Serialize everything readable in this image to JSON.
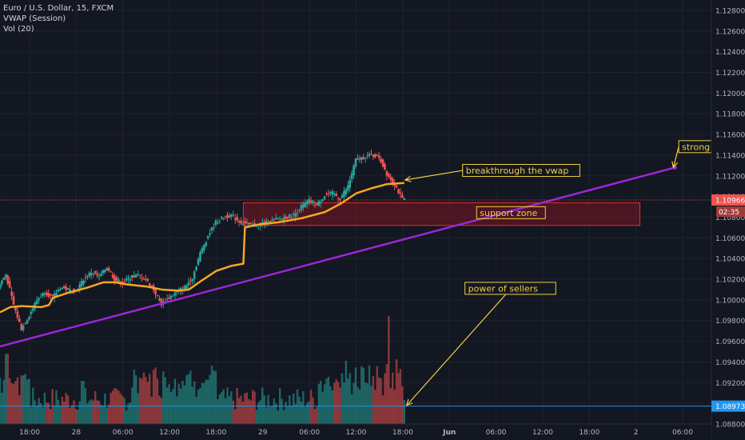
{
  "header": {
    "symbol": "Euro / U.S. Dollar, 15, FXCM",
    "indicator_vwap": "VWAP (Session)",
    "indicator_vol": "Vol (20)"
  },
  "colors": {
    "background": "#131722",
    "grid": "#1e222d",
    "axis_text": "#b2b5be",
    "up": "#26a69a",
    "down": "#ef5350",
    "vwap": "#f5a623",
    "trendline": "#9c27d6",
    "annotation_border": "#f0d040",
    "annotation_text": "#f0d040",
    "support_zone_fill": "#7a1520",
    "support_zone_border": "#e03030",
    "price_tag": "#ef5350",
    "volume_line": "#2196f3"
  },
  "chart_data": {
    "type": "candlestick",
    "ylim": [
      1.088,
      1.129
    ],
    "y_ticks": [
      "1.12800",
      "1.12600",
      "1.12400",
      "1.12200",
      "1.12000",
      "1.11800",
      "1.11600",
      "1.11400",
      "1.11200",
      "1.11000",
      "1.10800",
      "1.10600",
      "1.10400",
      "1.10200",
      "1.10000",
      "1.09800",
      "1.09600",
      "1.09400",
      "1.09200",
      "1.09000",
      "1.08800"
    ],
    "y_tick_values": [
      1.128,
      1.126,
      1.124,
      1.122,
      1.12,
      1.118,
      1.116,
      1.114,
      1.112,
      1.11,
      1.108,
      1.106,
      1.104,
      1.102,
      1.1,
      1.098,
      1.096,
      1.094,
      1.092,
      1.09,
      1.088
    ],
    "x_ticks": [
      "18:00",
      "28",
      "06:00",
      "12:00",
      "18:00",
      "29",
      "06:00",
      "12:00",
      "18:00",
      "Jun",
      "06:00",
      "12:00",
      "18:00",
      "2",
      "06:00"
    ],
    "x_tick_hours": [
      18,
      24,
      30,
      36,
      42,
      48,
      54,
      60,
      66,
      72,
      78,
      84,
      90,
      96,
      102
    ],
    "x_range_hours": [
      14.2,
      105.7
    ],
    "last_bar_hour": 66.2,
    "current_price": {
      "value": 1.10966,
      "label": "1.10966",
      "countdown": "02:35"
    },
    "volume_price_tag": {
      "value": 1.08973,
      "label": "1.08973"
    },
    "price_path": [
      [
        14.2,
        1.1012
      ],
      [
        15.2,
        1.1025
      ],
      [
        16.2,
        1.0995
      ],
      [
        17.2,
        1.0972
      ],
      [
        18.2,
        1.0985
      ],
      [
        19.2,
        1.1
      ],
      [
        20.2,
        1.1008
      ],
      [
        21.2,
        1.1002
      ],
      [
        22.2,
        1.1012
      ],
      [
        23.2,
        1.101
      ],
      [
        24.2,
        1.1008
      ],
      [
        25.2,
        1.102
      ],
      [
        26.2,
        1.1027
      ],
      [
        27.2,
        1.1022
      ],
      [
        28.2,
        1.1032
      ],
      [
        29.2,
        1.102
      ],
      [
        30.2,
        1.1016
      ],
      [
        31.2,
        1.1022
      ],
      [
        32.2,
        1.1024
      ],
      [
        33.2,
        1.102
      ],
      [
        34.2,
        1.101
      ],
      [
        35.2,
        1.0996
      ],
      [
        36.2,
        1.1002
      ],
      [
        37.2,
        1.1008
      ],
      [
        38.2,
        1.1012
      ],
      [
        39.2,
        1.1022
      ],
      [
        40.2,
        1.1045
      ],
      [
        41.2,
        1.1062
      ],
      [
        42.2,
        1.1075
      ],
      [
        43.2,
        1.108
      ],
      [
        44.2,
        1.1082
      ],
      [
        45.2,
        1.1076
      ],
      [
        46.2,
        1.1073
      ],
      [
        47.2,
        1.1072
      ],
      [
        48.2,
        1.1074
      ],
      [
        49.2,
        1.1076
      ],
      [
        50.2,
        1.1078
      ],
      [
        51.2,
        1.108
      ],
      [
        52.2,
        1.1082
      ],
      [
        53.2,
        1.109
      ],
      [
        54.2,
        1.1096
      ],
      [
        55.2,
        1.1092
      ],
      [
        56.2,
        1.1101
      ],
      [
        57.2,
        1.1103
      ],
      [
        58.2,
        1.1098
      ],
      [
        59.2,
        1.111
      ],
      [
        60.2,
        1.1135
      ],
      [
        61.2,
        1.1138
      ],
      [
        62.2,
        1.114
      ],
      [
        63.2,
        1.1138
      ],
      [
        64.2,
        1.1122
      ],
      [
        65.2,
        1.1112
      ],
      [
        66.2,
        1.1097
      ]
    ],
    "vwap": [
      [
        14.2,
        1.0988
      ],
      [
        15.5,
        1.0993
      ],
      [
        17.0,
        1.0994
      ],
      [
        19.5,
        1.0993
      ],
      [
        20.5,
        1.0995
      ],
      [
        21.0,
        1.1002
      ],
      [
        23.0,
        1.1007
      ],
      [
        25.5,
        1.1012
      ],
      [
        27.5,
        1.1017
      ],
      [
        29.0,
        1.1017
      ],
      [
        30.5,
        1.1015
      ],
      [
        33.0,
        1.1013
      ],
      [
        35.0,
        1.101
      ],
      [
        37.0,
        1.1009
      ],
      [
        38.5,
        1.101
      ],
      [
        40.0,
        1.1018
      ],
      [
        42.0,
        1.1028
      ],
      [
        44.0,
        1.1033
      ],
      [
        45.5,
        1.1035
      ],
      [
        45.7,
        1.107
      ],
      [
        47.5,
        1.1073
      ],
      [
        50.0,
        1.1075
      ],
      [
        53.0,
        1.1079
      ],
      [
        56.0,
        1.1085
      ],
      [
        58.0,
        1.1093
      ],
      [
        60.0,
        1.1103
      ],
      [
        62.0,
        1.1108
      ],
      [
        64.0,
        1.1112
      ],
      [
        66.2,
        1.1113
      ]
    ],
    "trendline": [
      [
        14.2,
        1.0955
      ],
      [
        101.0,
        1.1128
      ]
    ],
    "support_zone": {
      "x": [
        45.5,
        96.5
      ],
      "y": [
        1.1072,
        1.1094
      ],
      "label": "support zone"
    },
    "volume_scale": [
      0,
      100
    ],
    "volume_spikes": [
      [
        15.0,
        65
      ],
      [
        17.0,
        45
      ],
      [
        24.8,
        40
      ],
      [
        40.3,
        38
      ],
      [
        47.0,
        30
      ],
      [
        59.0,
        42
      ],
      [
        64.2,
        100
      ],
      [
        65.2,
        60
      ]
    ],
    "annotations": [
      {
        "text": "strong support line",
        "box_price": 1.1154,
        "box_hour": 101.5,
        "arrow_to": [
          100.8,
          1.1128
        ]
      },
      {
        "text": "breakthrough the vwap",
        "box_price": 1.1131,
        "box_hour": 73.7,
        "arrow_to": [
          66.3,
          1.1116
        ]
      },
      {
        "text": "power of sellers",
        "box_price": 1.1017,
        "box_hour": 74.0,
        "arrow_to": [
          66.5,
          1.0898
        ]
      }
    ]
  }
}
